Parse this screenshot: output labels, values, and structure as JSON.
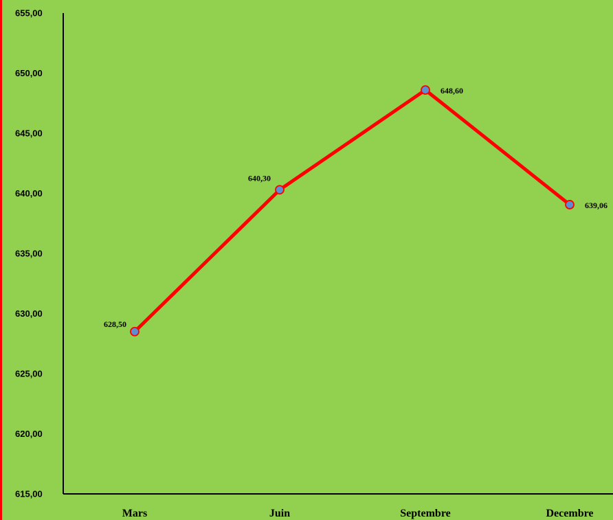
{
  "chart_data": {
    "type": "line",
    "categories": [
      "Mars",
      "Juin",
      "Septembre",
      "Decembre"
    ],
    "values": [
      628.5,
      640.3,
      648.6,
      639.06
    ],
    "data_labels": [
      "628,50",
      "640,30",
      "648,60",
      "639,06"
    ],
    "ylim": [
      615,
      655
    ],
    "ytick_labels": [
      "615,00",
      "620,00",
      "625,00",
      "630,00",
      "635,00",
      "640,00",
      "645,00",
      "650,00",
      "655,00"
    ],
    "title": "",
    "xlabel": "",
    "ylabel": "",
    "grid": false,
    "legend": "none",
    "colors": {
      "background": "#92d050",
      "line": "#ff0000",
      "marker_fill": "#5b8fd1",
      "marker_edge": "#ff0000",
      "axis": "#000000",
      "left_border": "#ff0000"
    }
  }
}
